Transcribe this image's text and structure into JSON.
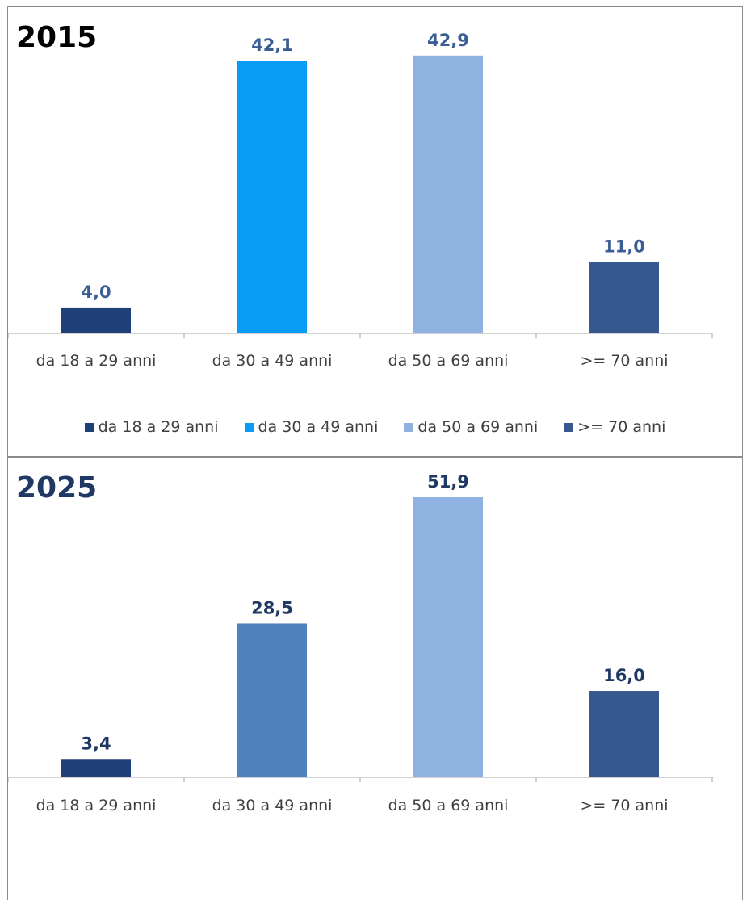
{
  "chart_data": [
    {
      "type": "bar",
      "title": "2015",
      "categories": [
        "da 18 a 29 anni",
        "da 30 a 49 anni",
        "da 50 a 69 anni",
        ">= 70 anni"
      ],
      "values": [
        4.0,
        42.1,
        42.9,
        11.0
      ],
      "value_labels": [
        "4,0",
        "42,1",
        "42,9",
        "11,0"
      ],
      "bar_colors": [
        "#1f3f78",
        "#0a9cf5",
        "#8fb3e1",
        "#35588f"
      ],
      "label_color": "#3b5d95",
      "title_color": "#000000",
      "ylim": [
        0,
        43
      ],
      "grid": false,
      "legend": {
        "placement": "bottom",
        "entries": [
          {
            "label": "da 18 a 29 anni",
            "color": "#1f3f78"
          },
          {
            "label": "da 30 a 49 anni",
            "color": "#0a9cf5"
          },
          {
            "label": "da 50 a 69 anni",
            "color": "#8fb3e1"
          },
          {
            "label": ">= 70 anni",
            "color": "#35588f"
          }
        ]
      }
    },
    {
      "type": "bar",
      "title": "2025",
      "categories": [
        "da 18 a 29 anni",
        "da 30 a 49 anni",
        "da 50 a 69 anni",
        ">= 70 anni"
      ],
      "values": [
        3.4,
        28.5,
        51.9,
        16.0
      ],
      "value_labels": [
        "3,4",
        "28,5",
        "51,9",
        "16,0"
      ],
      "bar_colors": [
        "#1f3f78",
        "#4f81bd",
        "#8fb3e1",
        "#35588f"
      ],
      "label_color": "#1f3864",
      "title_color": "#1f3864",
      "ylim": [
        0,
        51.9
      ],
      "grid": false
    }
  ]
}
